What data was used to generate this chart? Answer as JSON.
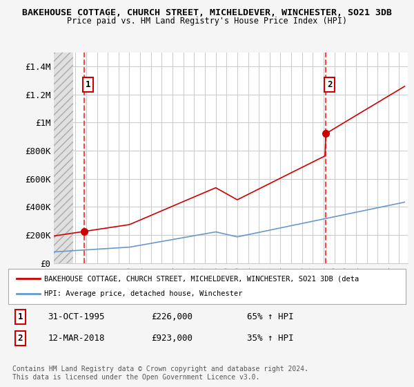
{
  "title1": "BAKEHOUSE COTTAGE, CHURCH STREET, MICHELDEVER, WINCHESTER, SO21 3DB",
  "title2": "Price paid vs. HM Land Registry's House Price Index (HPI)",
  "ylim": [
    0,
    1500000
  ],
  "yticks": [
    0,
    200000,
    400000,
    600000,
    800000,
    1000000,
    1200000,
    1400000
  ],
  "ytick_labels": [
    "£0",
    "£200K",
    "£400K",
    "£600K",
    "£800K",
    "£1M",
    "£1.2M",
    "£1.4M"
  ],
  "sale1_date": 1995.83,
  "sale1_price": 226000,
  "sale1_label": "1",
  "sale1_date_str": "31-OCT-1995",
  "sale1_price_str": "£226,000",
  "sale1_hpi": "65% ↑ HPI",
  "sale2_date": 2018.2,
  "sale2_price": 923000,
  "sale2_label": "2",
  "sale2_date_str": "12-MAR-2018",
  "sale2_price_str": "£923,000",
  "sale2_hpi": "35% ↑ HPI",
  "hpi_color": "#6699cc",
  "price_color": "#cc0000",
  "dashed_line_color": "#ff4444",
  "legend_label_red": "BAKEHOUSE COTTAGE, CHURCH STREET, MICHELDEVER, WINCHESTER, SO21 3DB (deta",
  "legend_label_blue": "HPI: Average price, detached house, Winchester",
  "footer": "Contains HM Land Registry data © Crown copyright and database right 2024.\nThis data is licensed under the Open Government Licence v3.0."
}
